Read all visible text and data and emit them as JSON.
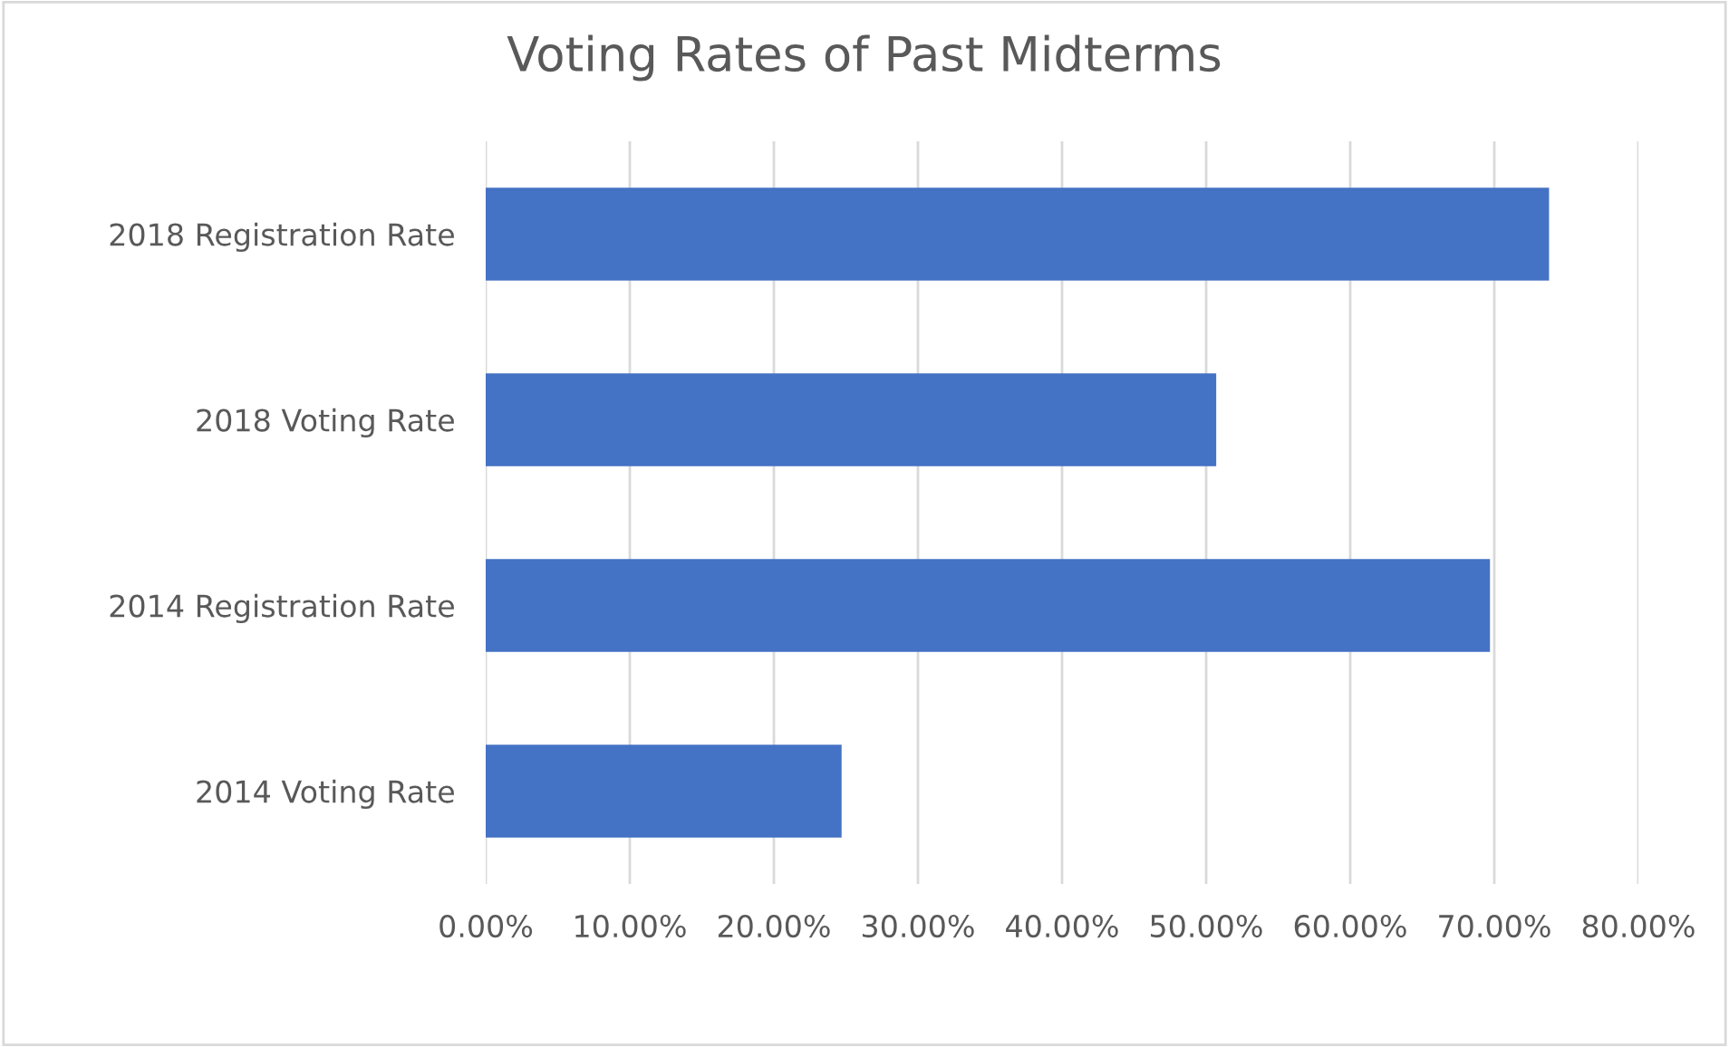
{
  "chart_data": {
    "type": "bar",
    "orientation": "horizontal",
    "title": "Voting Rates of Past Midterms",
    "categories": [
      "2018 Registration Rate",
      "2018 Voting Rate",
      "2014 Registration Rate",
      "2014 Voting Rate"
    ],
    "values": [
      73.8,
      50.7,
      69.7,
      24.7
    ],
    "color": "#4472c4",
    "xlim": [
      0,
      80
    ],
    "xticks": [
      {
        "value": 0,
        "label": "0.00%"
      },
      {
        "value": 10,
        "label": "10.00%"
      },
      {
        "value": 20,
        "label": "20.00%"
      },
      {
        "value": 30,
        "label": "30.00%"
      },
      {
        "value": 40,
        "label": "40.00%"
      },
      {
        "value": 50,
        "label": "50.00%"
      },
      {
        "value": 60,
        "label": "60.00%"
      },
      {
        "value": 70,
        "label": "70.00%"
      },
      {
        "value": 80,
        "label": "80.00%"
      }
    ],
    "grid": "x",
    "legend": false
  }
}
